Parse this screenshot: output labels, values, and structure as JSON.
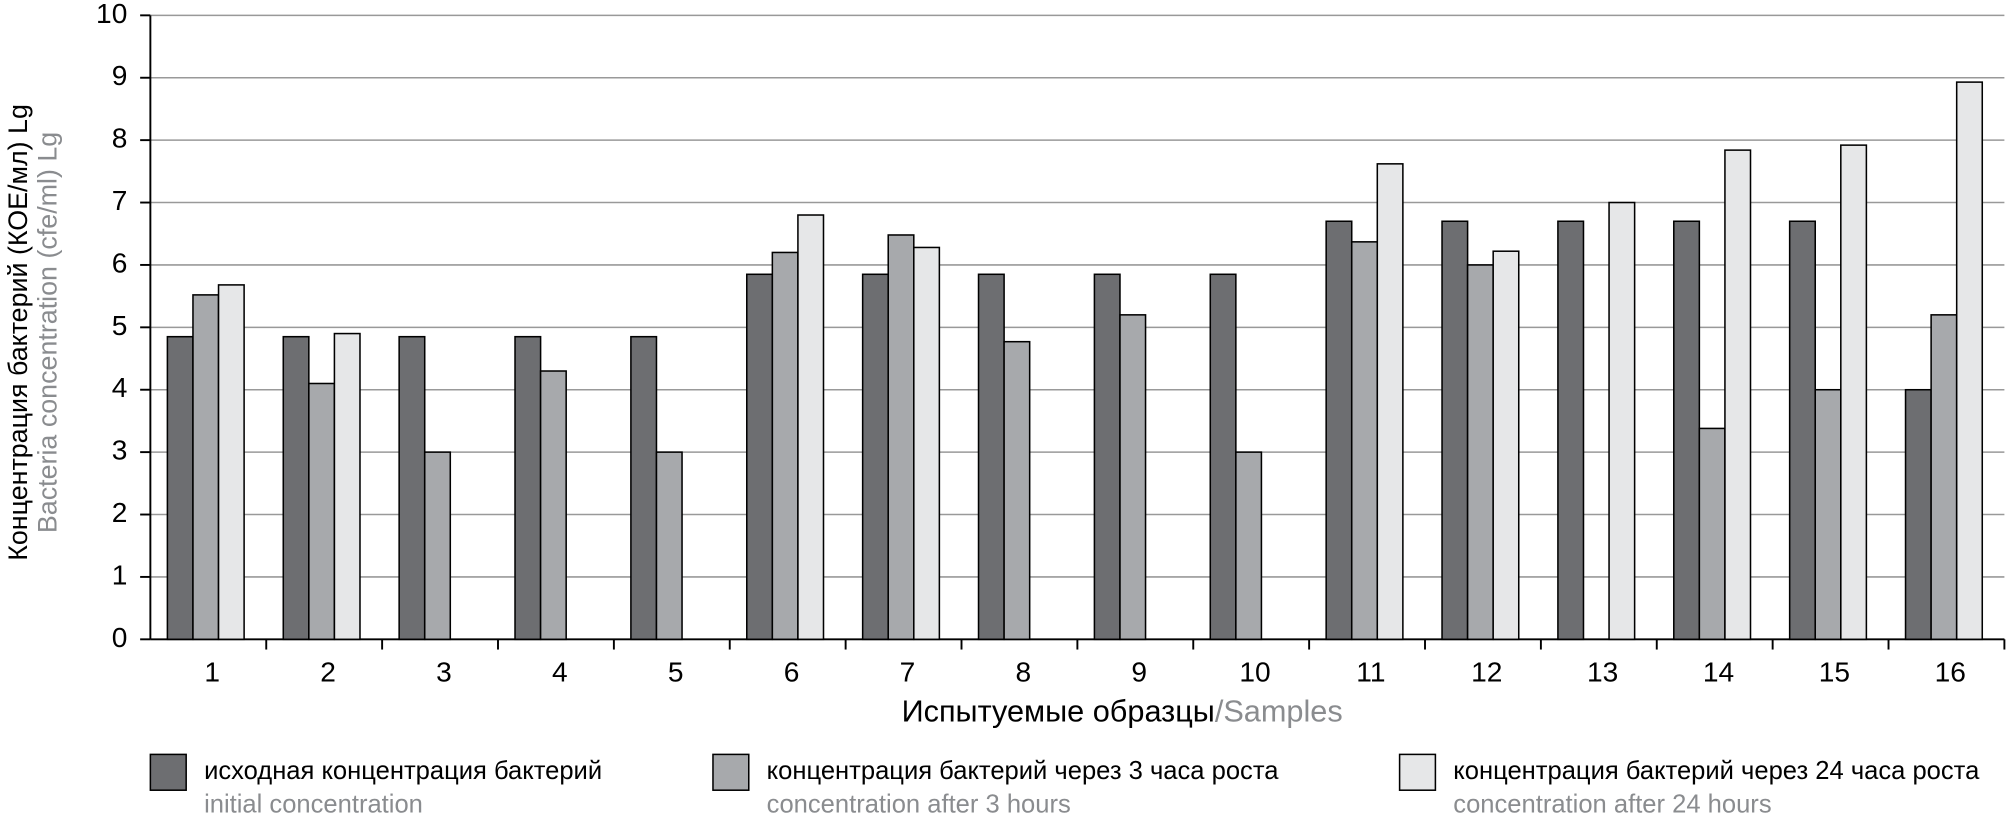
{
  "chart_data": {
    "type": "bar",
    "ylabel": "Концентрация бактерий (КОЕ/мл) Lg",
    "ylabel_en": "Bacteria concentration (cfe/ml) Lg",
    "xlabel": "Испытуемые образцы",
    "xlabel_en": "/Samples",
    "categories": [
      "1",
      "2",
      "3",
      "4",
      "5",
      "6",
      "7",
      "8",
      "9",
      "10",
      "11",
      "12",
      "13",
      "14",
      "15",
      "16"
    ],
    "series": [
      {
        "name": "исходная концентрация бактерий",
        "name_en": "initial concentration",
        "color": "#6d6e71",
        "values": [
          4.85,
          4.85,
          4.85,
          4.85,
          4.85,
          5.85,
          5.85,
          5.85,
          5.85,
          5.85,
          6.7,
          6.7,
          6.7,
          6.7,
          6.7,
          4.0
        ]
      },
      {
        "name": "концентрация бактерий через 3 часа роста",
        "name_en": "concentration after 3 hours",
        "color": "#a7a9ac",
        "values": [
          5.52,
          4.1,
          3.0,
          4.3,
          3.0,
          6.2,
          6.48,
          4.77,
          5.2,
          3.0,
          6.37,
          6.0,
          null,
          3.38,
          4.0,
          5.2
        ]
      },
      {
        "name": "концентрация бактерий через 24 часа роста",
        "name_en": "concentration after 24 hours",
        "color": "#e6e7e8",
        "values": [
          5.68,
          4.9,
          null,
          null,
          null,
          6.8,
          6.28,
          null,
          null,
          null,
          7.62,
          6.22,
          7.0,
          7.84,
          7.92,
          8.93
        ]
      }
    ],
    "ylim": [
      0,
      10
    ],
    "yticks": [
      0,
      1,
      2,
      3,
      4,
      5,
      6,
      7,
      8,
      9,
      10
    ],
    "grid": true
  }
}
